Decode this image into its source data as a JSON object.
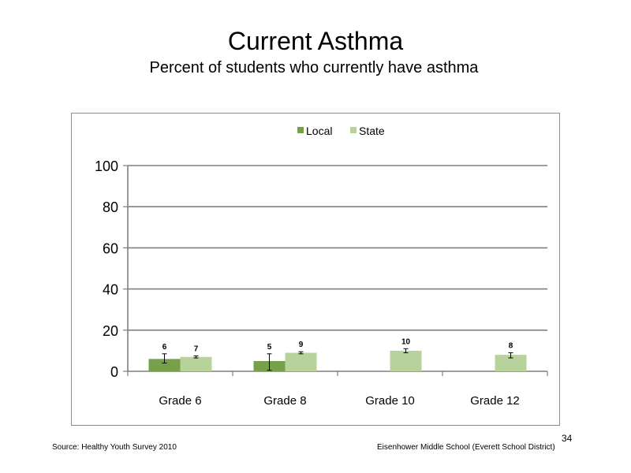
{
  "slide": {
    "title": "Current Asthma",
    "subtitle": "Percent of students who currently have asthma",
    "source": "Source: Healthy Youth Survey 2010",
    "school": "Eisenhower Middle  School (Everett School District)",
    "page_number": "34"
  },
  "colors": {
    "local": "#77a04a",
    "state": "#b7d29a",
    "gridline": "#7f7f7f"
  },
  "chart_data": {
    "type": "bar",
    "categories": [
      "Grade 6",
      "Grade 8",
      "Grade 10",
      "Grade 12"
    ],
    "series": [
      {
        "name": "Local",
        "values": [
          6,
          5,
          null,
          null
        ],
        "error_low": [
          4,
          0.5,
          null,
          null
        ],
        "error_high": [
          8.5,
          8.5,
          null,
          null
        ]
      },
      {
        "name": "State",
        "values": [
          7,
          9,
          10,
          8
        ],
        "error_low": [
          6.5,
          8.5,
          9,
          6.5
        ],
        "error_high": [
          7.5,
          9.5,
          11,
          9
        ]
      }
    ],
    "data_labels": [
      [
        "6",
        "5",
        "",
        ""
      ],
      [
        "7",
        "9",
        "10",
        "8"
      ]
    ],
    "yticks": [
      "0",
      "20",
      "40",
      "60",
      "80",
      "100"
    ],
    "ylim": [
      0,
      100
    ],
    "grid": true,
    "legend": "top-center"
  }
}
